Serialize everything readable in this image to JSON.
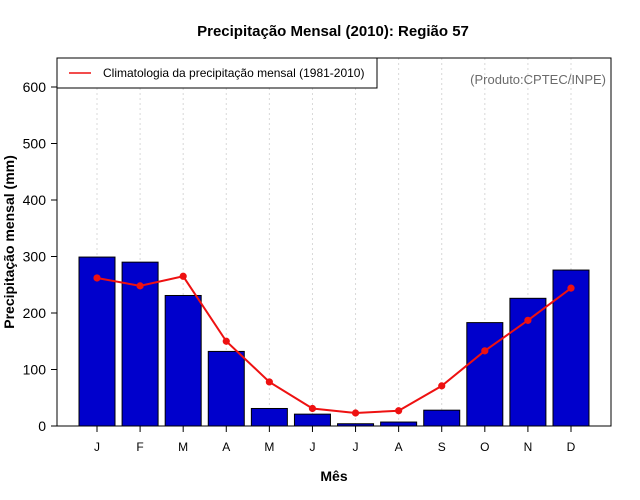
{
  "chart_data": {
    "type": "bar",
    "title": "Precipitação Mensal (2010): Região 57",
    "xlabel": "Mês",
    "ylabel": "Precipitação mensal (mm)",
    "categories": [
      "J",
      "F",
      "M",
      "A",
      "M",
      "J",
      "J",
      "A",
      "S",
      "O",
      "N",
      "D"
    ],
    "ylim": [
      0,
      650
    ],
    "yticks": [
      "0",
      "100",
      "200",
      "300",
      "400",
      "500",
      "600"
    ],
    "grid": "vertical dotted",
    "credit": "(Produto:CPTEC/INPE)",
    "legend_position": "top-left",
    "series": [
      {
        "name": "Precipitação mensal (2010)",
        "kind": "bar",
        "color": "#0000cc",
        "values": [
          299,
          290,
          231,
          132,
          31,
          21,
          4,
          7,
          28,
          183,
          226,
          276
        ]
      },
      {
        "name": "Climatologia da precipitação mensal (1981-2010)",
        "kind": "line",
        "color": "#ee1111",
        "values": [
          262,
          248,
          265,
          150,
          78,
          31,
          23,
          27,
          71,
          133,
          187,
          244
        ]
      }
    ]
  }
}
